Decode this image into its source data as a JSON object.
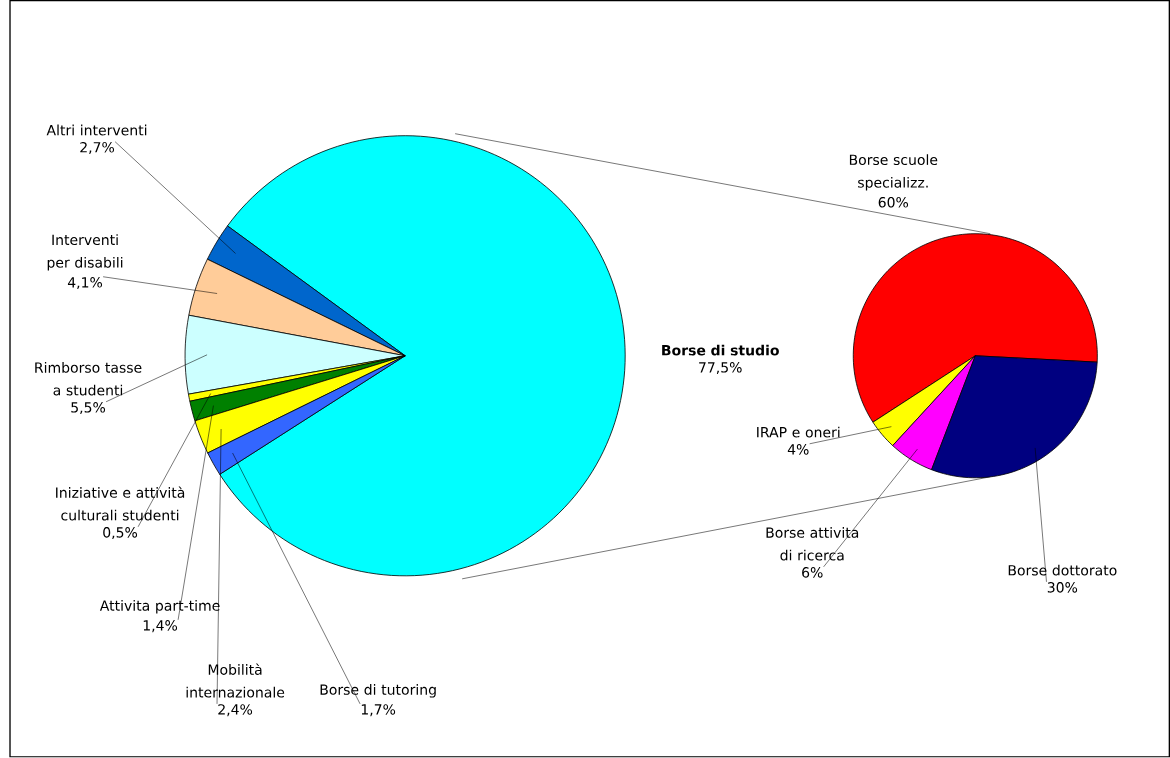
{
  "chart_data": [
    {
      "type": "pie",
      "categories": [
        "**Borse di studio**",
        "Altri interventi",
        "Interventi per disabili",
        "Rimborso tasse a studenti",
        "Iniziative e attività culturali studenti",
        "Attivita part-time",
        "Mobilità internazionale",
        "Borse di tutoring"
      ],
      "values": [
        77.5,
        2.7,
        4.1,
        5.5,
        0.5,
        1.4,
        2.4,
        1.7
      ],
      "value_labels": [
        "77,5%",
        "2,7%",
        "4,1%",
        "5,5%",
        "0,5%",
        "1,4%",
        "2,4%",
        "1,7%"
      ],
      "colors": [
        "#00ffff",
        "#0066cc",
        "#ffcc99",
        "#ccffff",
        "#ffff00",
        "#008000",
        "#ffff00",
        "#3366ff"
      ]
    },
    {
      "type": "pie",
      "categories": [
        "Borse scuole specializz.",
        "IRAP e oneri",
        "Borse attivita di ricerca",
        "Borse dottorato"
      ],
      "values": [
        60,
        4,
        6,
        30
      ],
      "value_labels": [
        "60%",
        "4%",
        "6%",
        "30%"
      ],
      "colors": [
        "#ff0000",
        "#ffff00",
        "#ff00ff",
        "#000080"
      ]
    }
  ]
}
